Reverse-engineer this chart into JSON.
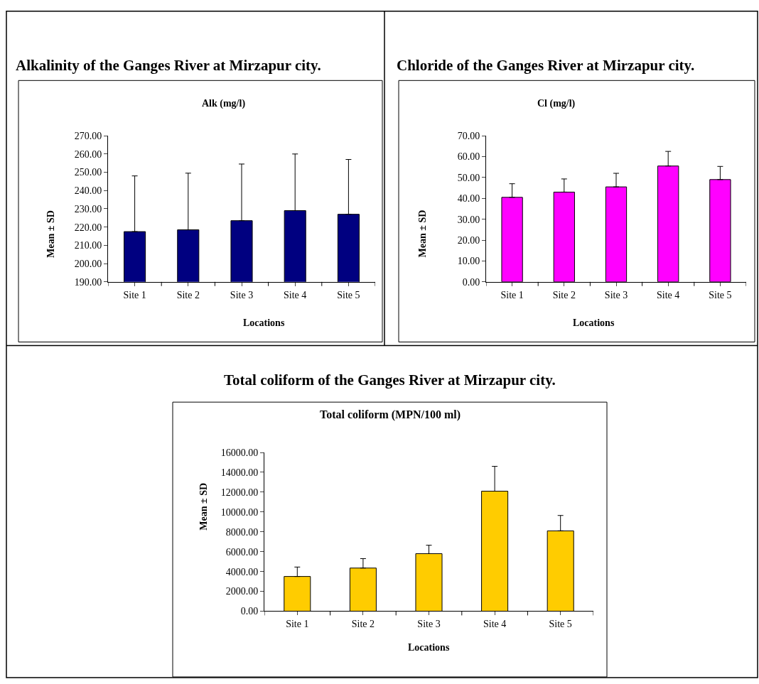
{
  "chart_data": [
    {
      "type": "bar",
      "title": "Alkalinity of the Ganges River at Mirzapur city.",
      "subtitle": "Alk (mg/l)",
      "xlabel": "Locations",
      "ylabel": "Mean ± SD",
      "categories": [
        "Site 1",
        "Site 2",
        "Site 3",
        "Site 4",
        "Site 5"
      ],
      "values": [
        217.5,
        218.5,
        223.5,
        229,
        227
      ],
      "color": "#000080",
      "errors": [
        [
          217.5,
          248
        ],
        [
          218.5,
          249.5
        ],
        [
          223.5,
          254.5
        ],
        [
          229,
          260
        ],
        [
          227,
          257
        ]
      ],
      "ylim": [
        190,
        270
      ],
      "yticks": [
        {
          "value": 190,
          "label": "190.00"
        },
        {
          "value": 200,
          "label": "200.00"
        },
        {
          "value": 210,
          "label": "210.00"
        },
        {
          "value": 220,
          "label": "220.00"
        },
        {
          "value": 230,
          "label": "230.00"
        },
        {
          "value": 240,
          "label": "240.00"
        },
        {
          "value": 250,
          "label": "250.00"
        },
        {
          "value": 260,
          "label": "260.00"
        },
        {
          "value": 270,
          "label": "270.00"
        }
      ]
    },
    {
      "type": "bar",
      "title": "Chloride of the Ganges River at Mirzapur city.",
      "subtitle": "Cl (mg/l)",
      "xlabel": "Locations",
      "ylabel": "Mean ± SD",
      "categories": [
        "Site 1",
        "Site 2",
        "Site 3",
        "Site 4",
        "Site 5"
      ],
      "values": [
        40.5,
        43,
        45.5,
        55.5,
        49
      ],
      "color": "#ff00ff",
      "errors": [
        [
          40.5,
          47
        ],
        [
          43,
          49.3
        ],
        [
          45.5,
          52
        ],
        [
          55.5,
          62.5
        ],
        [
          49,
          55.3
        ]
      ],
      "ylim": [
        0,
        70
      ],
      "yticks": [
        {
          "value": 0,
          "label": "0.00"
        },
        {
          "value": 10,
          "label": "10.00"
        },
        {
          "value": 20,
          "label": "20.00"
        },
        {
          "value": 30,
          "label": "30.00"
        },
        {
          "value": 40,
          "label": "40.00"
        },
        {
          "value": 50,
          "label": "50.00"
        },
        {
          "value": 60,
          "label": "60.00"
        },
        {
          "value": 70,
          "label": "70.00"
        }
      ]
    },
    {
      "type": "bar",
      "title": "Total coliform of the Ganges River at Mirzapur city.",
      "subtitle": "Total coliform (MPN/100 ml)",
      "xlabel": "Locations",
      "ylabel": "Mean ± SD",
      "categories": [
        "Site 1",
        "Site 2",
        "Site 3",
        "Site 4",
        "Site 5"
      ],
      "values": [
        3500,
        4350,
        5800,
        12100,
        8100
      ],
      "color": "#ffcc00",
      "errors": [
        [
          3500,
          4450
        ],
        [
          4350,
          5300
        ],
        [
          5800,
          6650
        ],
        [
          12100,
          14600
        ],
        [
          8100,
          9650
        ]
      ],
      "ylim": [
        0,
        16000
      ],
      "yticks": [
        {
          "value": 0,
          "label": "0.00"
        },
        {
          "value": 2000,
          "label": "2000.00"
        },
        {
          "value": 4000,
          "label": "4000.00"
        },
        {
          "value": 6000,
          "label": "6000.00"
        },
        {
          "value": 8000,
          "label": "8000.00"
        },
        {
          "value": 10000,
          "label": "10000.00"
        },
        {
          "value": 12000,
          "label": "12000.00"
        },
        {
          "value": 14000,
          "label": "14000.00"
        },
        {
          "value": 16000,
          "label": "16000.00"
        }
      ]
    }
  ]
}
